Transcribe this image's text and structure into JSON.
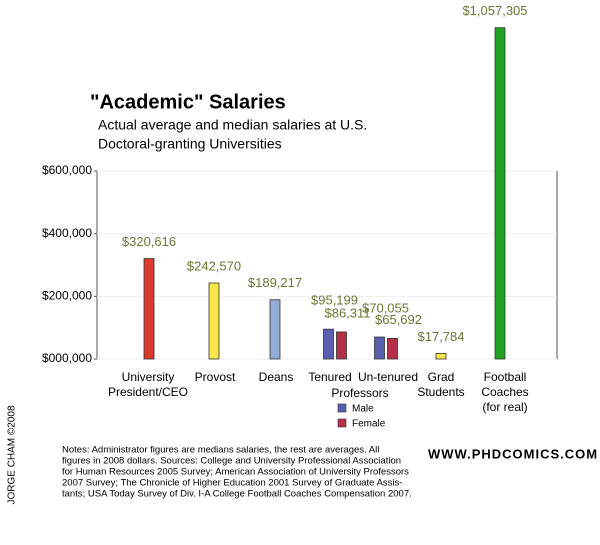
{
  "chart_data": {
    "type": "bar",
    "title": "\"Academic\" Salaries",
    "subtitle": [
      "Actual average and median salaries at U.S.",
      "Doctoral-granting Universities"
    ],
    "categories": [
      [
        "University",
        "President/CEO"
      ],
      [
        "Provost"
      ],
      [
        "Deans"
      ],
      [
        "Tenured"
      ],
      [
        "Un-tenured"
      ],
      [
        "Grad",
        "Students"
      ],
      [
        "Football",
        "Coaches",
        "(for real)"
      ]
    ],
    "group_label": "Professors",
    "values": [
      320616,
      242570,
      189217,
      null,
      null,
      17784,
      1057305
    ],
    "value_labels": [
      "$320,616",
      "$242,570",
      "$189,217",
      null,
      null,
      "$17,784",
      "$1,057,305"
    ],
    "colors": [
      "#d93a2b",
      "#f7e74a",
      "#93acd6",
      null,
      null,
      "#f7e74a",
      "#22a322"
    ],
    "series": [
      {
        "name": "Male",
        "color": "#5a5fb0",
        "values": [
          null,
          null,
          null,
          95199,
          70055,
          null,
          null
        ],
        "value_labels": [
          null,
          null,
          null,
          "$95,199",
          "$70,055",
          null,
          null
        ]
      },
      {
        "name": "Female",
        "color": "#b33048",
        "values": [
          null,
          null,
          null,
          86311,
          65692,
          null,
          null
        ],
        "value_labels": [
          null,
          null,
          null,
          "$86,311",
          "$65,692",
          null,
          null
        ]
      }
    ],
    "ylim": [
      0,
      600000
    ],
    "yticks": [
      {
        "value": 0,
        "label": "$000,000"
      },
      {
        "value": 200000,
        "label": "$200,000"
      },
      {
        "value": 400000,
        "label": "$400,000"
      },
      {
        "value": 600000,
        "label": "$600,000"
      }
    ],
    "grid": true,
    "notes": [
      "Notes: Administrator figures are medians salaries, the rest are averages. All",
      "figures in 2008 dollars. Sources: College and University Professional Association",
      "for Human Resources 2005 Survey; American Association of University Professors",
      "2007 Survey; The Chronicle of Higher Education 2001 Survey of Graduate Assis-",
      "tants; USA Today Survey of Div. I-A College Football Coaches Compensation 2007."
    ],
    "website": "WWW.PHDCOMICS.COM",
    "credit": "JORGE CHAM ©2008"
  }
}
